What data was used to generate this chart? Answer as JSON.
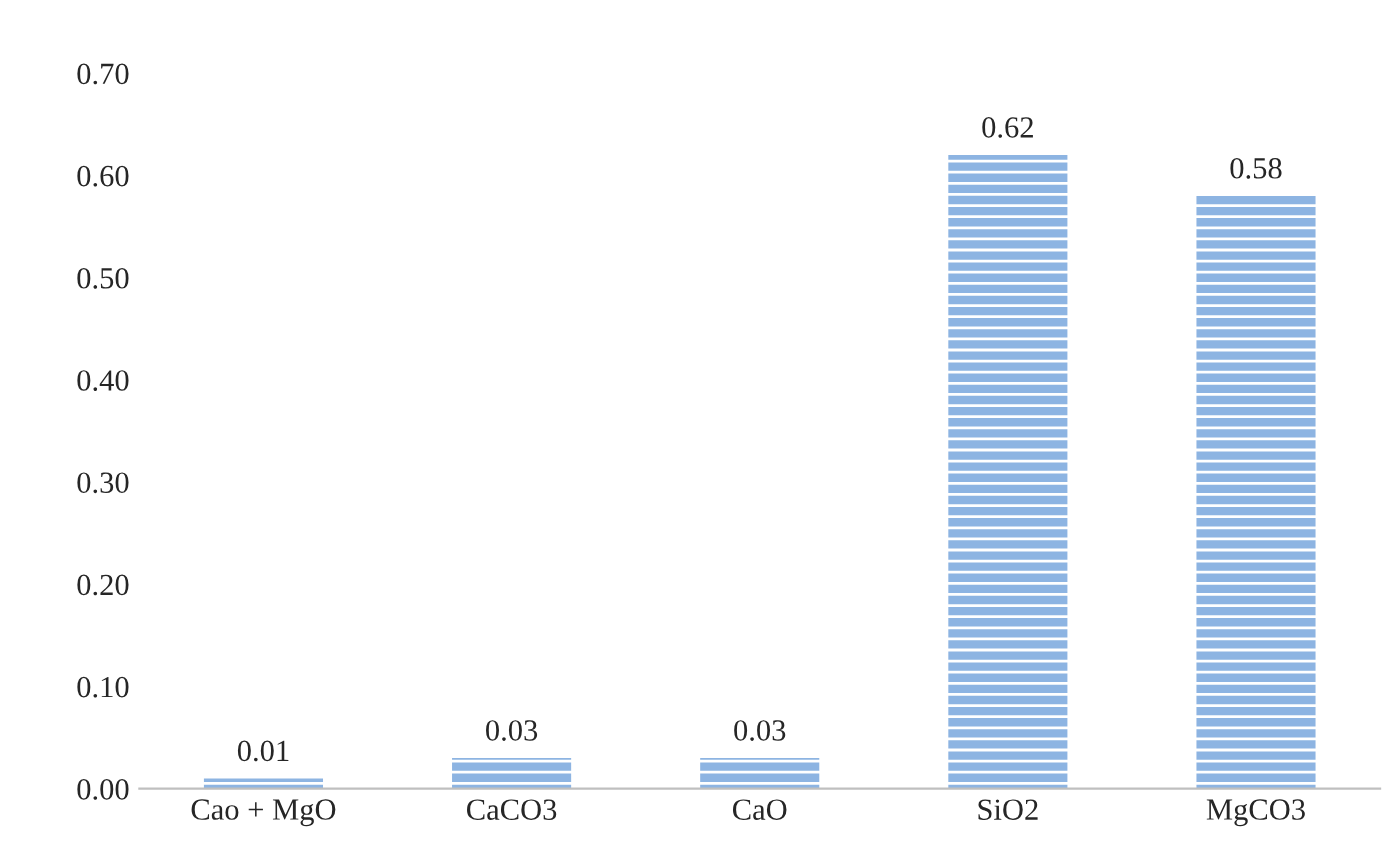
{
  "chart_data": {
    "type": "bar",
    "categories": [
      "Cao + MgO",
      "CaCO3",
      "CaO",
      "SiO2",
      "MgCO3"
    ],
    "values": [
      0.01,
      0.03,
      0.03,
      0.62,
      0.58
    ],
    "color": "#8db4e2",
    "data_labels": true,
    "ylim": [
      0,
      0.7
    ],
    "yticks": [
      {
        "value": 0,
        "label": "0.00"
      },
      {
        "value": 0.1,
        "label": "0.10"
      },
      {
        "value": 0.2,
        "label": "0.20"
      },
      {
        "value": 0.3,
        "label": "0.30"
      },
      {
        "value": 0.4,
        "label": "0.40"
      },
      {
        "value": 0.5,
        "label": "0.50"
      },
      {
        "value": 0.6,
        "label": "0.60"
      },
      {
        "value": 0.7,
        "label": "0.70"
      }
    ],
    "grid": false,
    "legend": false
  }
}
